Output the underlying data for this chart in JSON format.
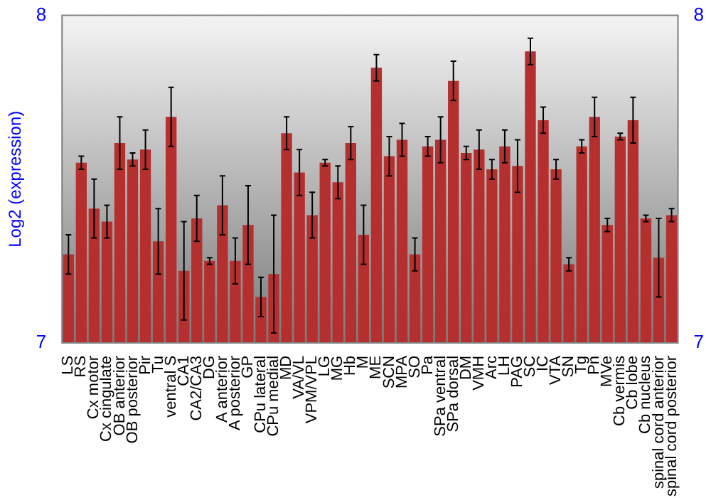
{
  "chart_data": {
    "type": "bar",
    "ylabel": "Log2 (expression)",
    "categories": [
      "LS",
      "RS",
      "Cx motor",
      "Cx cingulate",
      "OB anterior",
      "OB posterior",
      "Pir",
      "Tu",
      "ventral S",
      "CA1",
      "CA2/CA3",
      "DG",
      "A anterior",
      "A posterior",
      "GP",
      "CPu lateral",
      "CPu medial",
      "MD",
      "VA/VL",
      "VPM/VPL",
      "LG",
      "MG",
      "Hb",
      "M",
      "ME",
      "SCN",
      "MPA",
      "SO",
      "Pa",
      "SPa ventral",
      "SPa dorsal",
      "DM",
      "VMH",
      "Arc",
      "LH",
      "PAG",
      "SC",
      "IC",
      "VTA",
      "SN",
      "Tg",
      "Pn",
      "MVe",
      "Cb vermis",
      "Cb lobe",
      "Cb nucleus",
      "spinal cord anterior",
      "spinal cord posterior"
    ],
    "values": [
      7.27,
      7.55,
      7.41,
      7.37,
      7.61,
      7.56,
      7.59,
      7.31,
      7.69,
      7.22,
      7.38,
      7.25,
      7.42,
      7.25,
      7.36,
      7.14,
      7.21,
      7.64,
      7.52,
      7.39,
      7.55,
      7.49,
      7.61,
      7.33,
      7.84,
      7.57,
      7.62,
      7.27,
      7.6,
      7.62,
      7.8,
      7.58,
      7.59,
      7.53,
      7.6,
      7.54,
      7.89,
      7.68,
      7.53,
      7.24,
      7.6,
      7.69,
      7.36,
      7.63,
      7.68,
      7.38,
      7.26,
      7.39
    ],
    "errors": [
      0.06,
      0.02,
      0.09,
      0.05,
      0.08,
      0.02,
      0.06,
      0.1,
      0.09,
      0.15,
      0.07,
      0.01,
      0.09,
      0.07,
      0.12,
      0.06,
      0.18,
      0.05,
      0.07,
      0.07,
      0.01,
      0.05,
      0.05,
      0.09,
      0.04,
      0.06,
      0.05,
      0.05,
      0.03,
      0.07,
      0.06,
      0.02,
      0.06,
      0.03,
      0.05,
      0.08,
      0.04,
      0.04,
      0.03,
      0.02,
      0.02,
      0.06,
      0.02,
      0.01,
      0.07,
      0.01,
      0.12,
      0.02
    ],
    "color": "#b52f2f",
    "ylim": [
      7,
      8
    ],
    "yticks": [
      7,
      8
    ],
    "y2lim": [
      7,
      8
    ],
    "y2ticks": [
      7,
      8
    ],
    "grid": false,
    "legend": false
  }
}
